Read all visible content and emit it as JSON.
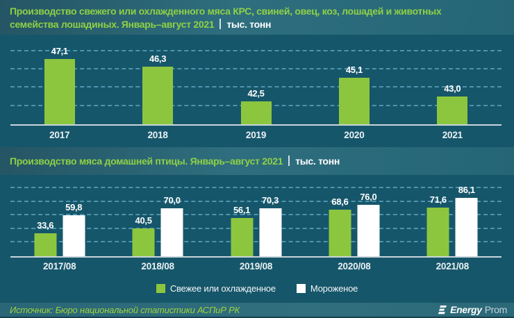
{
  "header1": {
    "line1": "Производство свежего или охлажденного мяса КРС, свиней, овец, коз, лошадей и животных",
    "line2": "семейства лошадиных. Январь–август 2021",
    "unit": "тыс. тонн"
  },
  "header2": {
    "text": "Производство мяса домашней птицы. Январь–август 2021",
    "unit": "тыс. тонн"
  },
  "chart_data": [
    {
      "type": "bar",
      "title": "Производство свежего или охлажденного мяса КРС, свиней, овец, коз, лошадей и животных семейства лошадиных. Январь–август 2021, тыс. тонн",
      "categories": [
        "2017",
        "2018",
        "2019",
        "2020",
        "2021"
      ],
      "values": [
        47.1,
        46.3,
        42.5,
        45.1,
        43.0
      ],
      "value_labels": [
        "47,1",
        "46,3",
        "42,5",
        "45,1",
        "43,0"
      ],
      "bar_color": "#8CC63F",
      "ylim": [
        40,
        48.5
      ],
      "gridlines": [
        42,
        44,
        46,
        48
      ],
      "grid_on": true,
      "xlabel": "",
      "ylabel": "тыс. тонн"
    },
    {
      "type": "bar",
      "title": "Производство мяса домашней птицы. Январь–август 2021, тыс. тонн",
      "categories": [
        "2017/08",
        "2018/08",
        "2019/08",
        "2020/08",
        "2021/08"
      ],
      "series": [
        {
          "name": "Свежее или охлажденное",
          "color": "#8CC63F",
          "values": [
            33.6,
            40.5,
            56.1,
            68.6,
            71.6
          ],
          "value_labels": [
            "33,6",
            "40,5",
            "56,1",
            "68,6",
            "71,6"
          ]
        },
        {
          "name": "Мороженое",
          "color": "#FFFFFF",
          "values": [
            59.8,
            70.0,
            70.3,
            76.0,
            86.1
          ],
          "value_labels": [
            "59,8",
            "70,0",
            "70,3",
            "76,0",
            "86,1"
          ]
        }
      ],
      "ylim": [
        0,
        100
      ],
      "gridlines": [
        20,
        40,
        60,
        80,
        100
      ],
      "grid_on": true,
      "xlabel": "",
      "ylabel": "тыс. тонн",
      "legend_position": "bottom"
    }
  ],
  "footer": {
    "source": "Источник: Бюро национальной статистики АСПиР РК",
    "brand_bold": "Energy",
    "brand_light": "Prom"
  },
  "colors": {
    "background": "#16566A",
    "band": "#2E6E7E",
    "accent_green": "#8CC63F",
    "bar_white": "#FFFFFF",
    "title_green": "#8FD046",
    "gridline": "#60AAC4",
    "axis_line": "#C9D5DB",
    "footer_source_green": "#9ED23F"
  }
}
